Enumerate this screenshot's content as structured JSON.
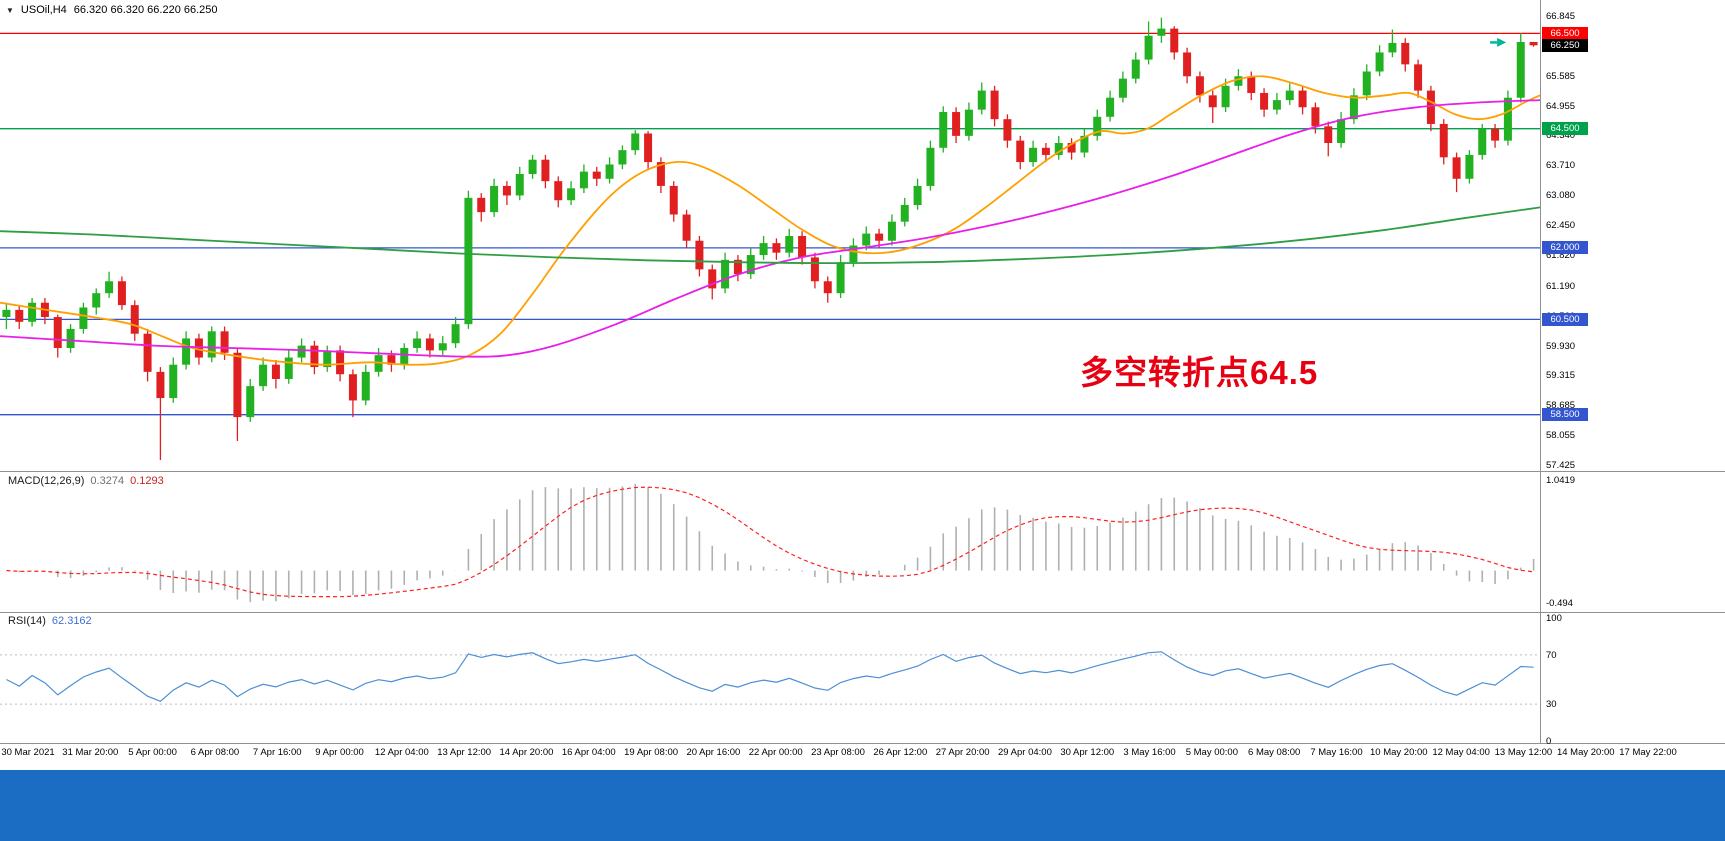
{
  "window": {
    "footer_color": "#1a6dc3"
  },
  "header": {
    "symbol_period": "USOil,H4",
    "ohlc": "66.320 66.320 66.220 66.250"
  },
  "icons": {
    "collapse": "▼"
  },
  "annotation": {
    "text": "多空转折点64.5",
    "color": "#e60012"
  },
  "indicators": {
    "macd": {
      "label": "MACD(12,26,9)",
      "value_main": "0.3274",
      "value_signal": "0.1293",
      "axis_top": "1.0419",
      "axis_bottom": "-0.494",
      "histogram_color": "#b0b0b0",
      "signal_color": "#ff2020"
    },
    "rsi": {
      "label": "RSI(14)",
      "value": "62.3162",
      "axis_labels": [
        "100",
        "70",
        "30",
        "0"
      ],
      "levels": [
        70,
        30
      ],
      "line_color": "#4b8fd5"
    }
  },
  "price_axis": {
    "plain": [
      {
        "text": "66.845",
        "price": 66.845
      },
      {
        "text": "65.585",
        "price": 65.585
      },
      {
        "text": "64.955",
        "price": 64.955
      },
      {
        "text": "64.340",
        "price": 64.34
      },
      {
        "text": "63.710",
        "price": 63.71
      },
      {
        "text": "63.080",
        "price": 63.08
      },
      {
        "text": "62.450",
        "price": 62.45
      },
      {
        "text": "61.820",
        "price": 61.82
      },
      {
        "text": "61.190",
        "price": 61.19
      },
      {
        "text": "60.560",
        "price": 60.56
      },
      {
        "text": "59.930",
        "price": 59.93
      },
      {
        "text": "59.315",
        "price": 59.315
      },
      {
        "text": "58.685",
        "price": 58.685
      },
      {
        "text": "58.055",
        "price": 58.055
      },
      {
        "text": "57.425",
        "price": 57.425
      }
    ],
    "badges": [
      {
        "text": "66.500",
        "price": 66.5,
        "bg": "#ff0000"
      },
      {
        "text": "66.250",
        "price": 66.25,
        "bg": "#000000"
      },
      {
        "text": "64.500",
        "price": 64.5,
        "bg": "#00a14b"
      },
      {
        "text": "62.000",
        "price": 62.0,
        "bg": "#3355d0"
      },
      {
        "text": "60.500",
        "price": 60.5,
        "bg": "#3355d0"
      },
      {
        "text": "58.500",
        "price": 58.5,
        "bg": "#3355d0"
      }
    ]
  },
  "time_axis": {
    "labels": [
      "30 Mar 2021",
      "31 Mar 20:00",
      "5 Apr 00:00",
      "6 Apr 08:00",
      "7 Apr 16:00",
      "9 Apr 00:00",
      "12 Apr 04:00",
      "13 Apr 12:00",
      "14 Apr 20:00",
      "16 Apr 04:00",
      "19 Apr 08:00",
      "20 Apr 16:00",
      "22 Apr 00:00",
      "23 Apr 08:00",
      "26 Apr 12:00",
      "27 Apr 20:00",
      "29 Apr 04:00",
      "30 Apr 12:00",
      "3 May 16:00",
      "5 May 00:00",
      "6 May 08:00",
      "7 May 16:00",
      "10 May 20:00",
      "12 May 04:00",
      "13 May 12:00",
      "14 May 20:00",
      "17 May 22:00"
    ]
  },
  "chart_data": {
    "type": "candlestick",
    "symbol": "USOil",
    "timeframe": "H4",
    "last_ohlc": {
      "open": 66.32,
      "high": 66.32,
      "low": 66.22,
      "close": 66.25
    },
    "price_range": [
      57.32,
      67.2
    ],
    "time_start": "30 Mar 2021",
    "time_end": "17 May 22:00",
    "bull_color": "#21b121",
    "bear_color": "#e02020",
    "candles": [
      [
        60.55,
        60.85,
        60.3,
        60.7
      ],
      [
        60.7,
        60.8,
        60.3,
        60.45
      ],
      [
        60.45,
        60.95,
        60.35,
        60.85
      ],
      [
        60.85,
        60.95,
        60.4,
        60.55
      ],
      [
        60.55,
        60.6,
        59.7,
        59.9
      ],
      [
        59.9,
        60.4,
        59.8,
        60.3
      ],
      [
        60.3,
        60.85,
        60.2,
        60.75
      ],
      [
        60.75,
        61.15,
        60.6,
        61.05
      ],
      [
        61.05,
        61.5,
        60.95,
        61.3
      ],
      [
        61.3,
        61.4,
        60.7,
        60.8
      ],
      [
        60.8,
        60.9,
        60.05,
        60.2
      ],
      [
        60.2,
        60.3,
        59.2,
        59.4
      ],
      [
        59.4,
        59.5,
        57.55,
        58.85
      ],
      [
        58.85,
        59.7,
        58.75,
        59.55
      ],
      [
        59.55,
        60.25,
        59.45,
        60.1
      ],
      [
        60.1,
        60.2,
        59.55,
        59.7
      ],
      [
        59.7,
        60.35,
        59.6,
        60.25
      ],
      [
        60.25,
        60.35,
        59.65,
        59.8
      ],
      [
        59.8,
        59.9,
        57.95,
        58.45
      ],
      [
        58.45,
        59.25,
        58.35,
        59.1
      ],
      [
        59.1,
        59.7,
        59.0,
        59.55
      ],
      [
        59.55,
        59.65,
        59.05,
        59.25
      ],
      [
        59.25,
        59.85,
        59.15,
        59.7
      ],
      [
        59.7,
        60.1,
        59.6,
        59.95
      ],
      [
        59.95,
        60.05,
        59.35,
        59.5
      ],
      [
        59.5,
        59.95,
        59.4,
        59.85
      ],
      [
        59.85,
        59.95,
        59.2,
        59.35
      ],
      [
        59.35,
        59.45,
        58.45,
        58.8
      ],
      [
        58.8,
        59.55,
        58.7,
        59.4
      ],
      [
        59.4,
        59.9,
        59.3,
        59.75
      ],
      [
        59.75,
        59.85,
        59.4,
        59.55
      ],
      [
        59.55,
        60.0,
        59.45,
        59.9
      ],
      [
        59.9,
        60.25,
        59.8,
        60.1
      ],
      [
        60.1,
        60.2,
        59.7,
        59.85
      ],
      [
        59.85,
        60.15,
        59.75,
        60.0
      ],
      [
        60.0,
        60.55,
        59.9,
        60.4
      ],
      [
        60.4,
        63.2,
        60.3,
        63.05
      ],
      [
        63.05,
        63.15,
        62.55,
        62.75
      ],
      [
        62.75,
        63.45,
        62.65,
        63.3
      ],
      [
        63.3,
        63.4,
        62.9,
        63.1
      ],
      [
        63.1,
        63.7,
        63.0,
        63.55
      ],
      [
        63.55,
        63.95,
        63.45,
        63.85
      ],
      [
        63.85,
        63.95,
        63.25,
        63.4
      ],
      [
        63.4,
        63.5,
        62.85,
        63.0
      ],
      [
        63.0,
        63.4,
        62.9,
        63.25
      ],
      [
        63.25,
        63.75,
        63.15,
        63.6
      ],
      [
        63.6,
        63.7,
        63.3,
        63.45
      ],
      [
        63.45,
        63.9,
        63.35,
        63.75
      ],
      [
        63.75,
        64.15,
        63.65,
        64.05
      ],
      [
        64.05,
        64.47,
        63.95,
        64.4
      ],
      [
        64.4,
        64.45,
        63.65,
        63.8
      ],
      [
        63.8,
        63.9,
        63.15,
        63.3
      ],
      [
        63.3,
        63.4,
        62.55,
        62.7
      ],
      [
        62.7,
        62.8,
        62.0,
        62.15
      ],
      [
        62.15,
        62.25,
        61.4,
        61.55
      ],
      [
        61.55,
        61.65,
        60.92,
        61.15
      ],
      [
        61.15,
        61.9,
        61.05,
        61.75
      ],
      [
        61.75,
        61.85,
        61.3,
        61.45
      ],
      [
        61.45,
        62.0,
        61.35,
        61.85
      ],
      [
        61.85,
        62.25,
        61.75,
        62.1
      ],
      [
        62.1,
        62.2,
        61.75,
        61.9
      ],
      [
        61.9,
        62.4,
        61.8,
        62.25
      ],
      [
        62.25,
        62.35,
        61.65,
        61.8
      ],
      [
        61.8,
        61.9,
        61.15,
        61.3
      ],
      [
        61.3,
        61.4,
        60.85,
        61.05
      ],
      [
        61.05,
        61.85,
        60.95,
        61.7
      ],
      [
        61.7,
        62.2,
        61.6,
        62.05
      ],
      [
        62.05,
        62.45,
        61.95,
        62.3
      ],
      [
        62.3,
        62.4,
        62.0,
        62.15
      ],
      [
        62.15,
        62.7,
        62.05,
        62.55
      ],
      [
        62.55,
        63.05,
        62.45,
        62.9
      ],
      [
        62.9,
        63.45,
        62.8,
        63.3
      ],
      [
        63.3,
        64.25,
        63.2,
        64.1
      ],
      [
        64.1,
        64.97,
        64.0,
        64.85
      ],
      [
        64.85,
        64.95,
        64.2,
        64.35
      ],
      [
        64.35,
        65.05,
        64.25,
        64.9
      ],
      [
        64.9,
        65.47,
        64.8,
        65.3
      ],
      [
        65.3,
        65.4,
        64.55,
        64.7
      ],
      [
        64.7,
        64.8,
        64.1,
        64.25
      ],
      [
        64.25,
        64.35,
        63.65,
        63.8
      ],
      [
        63.8,
        64.25,
        63.7,
        64.1
      ],
      [
        64.1,
        64.2,
        63.8,
        63.95
      ],
      [
        63.95,
        64.35,
        63.85,
        64.2
      ],
      [
        64.2,
        64.3,
        63.85,
        64.0
      ],
      [
        64.0,
        64.5,
        63.9,
        64.35
      ],
      [
        64.35,
        64.9,
        64.25,
        64.75
      ],
      [
        64.75,
        65.3,
        64.65,
        65.15
      ],
      [
        65.15,
        65.7,
        65.05,
        65.55
      ],
      [
        65.55,
        66.1,
        65.45,
        65.95
      ],
      [
        65.95,
        66.75,
        65.85,
        66.45
      ],
      [
        66.45,
        66.83,
        66.3,
        66.6
      ],
      [
        66.6,
        66.65,
        65.95,
        66.1
      ],
      [
        66.1,
        66.2,
        65.45,
        65.6
      ],
      [
        65.6,
        65.7,
        65.05,
        65.2
      ],
      [
        65.2,
        65.3,
        64.62,
        64.95
      ],
      [
        64.95,
        65.55,
        64.85,
        65.4
      ],
      [
        65.4,
        65.75,
        65.3,
        65.6
      ],
      [
        65.6,
        65.7,
        65.1,
        65.25
      ],
      [
        65.25,
        65.35,
        64.75,
        64.9
      ],
      [
        64.9,
        65.25,
        64.8,
        65.1
      ],
      [
        65.1,
        65.45,
        65.0,
        65.3
      ],
      [
        65.3,
        65.4,
        64.8,
        64.95
      ],
      [
        64.95,
        65.05,
        64.4,
        64.55
      ],
      [
        64.55,
        64.65,
        63.92,
        64.2
      ],
      [
        64.2,
        64.85,
        64.1,
        64.7
      ],
      [
        64.7,
        65.35,
        64.6,
        65.2
      ],
      [
        65.2,
        65.85,
        65.1,
        65.7
      ],
      [
        65.7,
        66.25,
        65.6,
        66.1
      ],
      [
        66.1,
        66.58,
        66.0,
        66.3
      ],
      [
        66.3,
        66.4,
        65.7,
        65.85
      ],
      [
        65.85,
        65.95,
        65.15,
        65.3
      ],
      [
        65.3,
        65.4,
        64.45,
        64.6
      ],
      [
        64.6,
        64.7,
        63.75,
        63.9
      ],
      [
        63.9,
        64.0,
        63.17,
        63.45
      ],
      [
        63.45,
        64.05,
        63.35,
        63.95
      ],
      [
        63.95,
        64.6,
        63.85,
        64.5
      ],
      [
        64.5,
        64.6,
        64.1,
        64.25
      ],
      [
        64.25,
        65.3,
        64.15,
        65.15
      ],
      [
        65.15,
        66.5,
        65.05,
        66.32
      ],
      [
        66.32,
        66.32,
        66.22,
        66.25
      ]
    ],
    "moving_averages": [
      {
        "name": "ma-fast-orange",
        "color": "#ffa000",
        "points": [
          [
            0,
            60.85
          ],
          [
            0.03,
            60.7
          ],
          [
            0.06,
            60.55
          ],
          [
            0.085,
            60.4
          ],
          [
            0.105,
            60.15
          ],
          [
            0.125,
            59.9
          ],
          [
            0.15,
            59.75
          ],
          [
            0.18,
            59.62
          ],
          [
            0.21,
            59.55
          ],
          [
            0.24,
            59.6
          ],
          [
            0.265,
            59.55
          ],
          [
            0.285,
            59.58
          ],
          [
            0.305,
            59.75
          ],
          [
            0.325,
            60.2
          ],
          [
            0.345,
            61.0
          ],
          [
            0.365,
            61.9
          ],
          [
            0.385,
            62.7
          ],
          [
            0.4,
            63.2
          ],
          [
            0.415,
            63.55
          ],
          [
            0.43,
            63.75
          ],
          [
            0.445,
            63.8
          ],
          [
            0.46,
            63.65
          ],
          [
            0.48,
            63.3
          ],
          [
            0.5,
            62.85
          ],
          [
            0.52,
            62.4
          ],
          [
            0.54,
            62.05
          ],
          [
            0.56,
            61.9
          ],
          [
            0.58,
            61.92
          ],
          [
            0.6,
            62.1
          ],
          [
            0.62,
            62.4
          ],
          [
            0.64,
            62.85
          ],
          [
            0.66,
            63.35
          ],
          [
            0.68,
            63.85
          ],
          [
            0.7,
            64.25
          ],
          [
            0.715,
            64.45
          ],
          [
            0.73,
            64.4
          ],
          [
            0.745,
            64.5
          ],
          [
            0.76,
            64.8
          ],
          [
            0.78,
            65.2
          ],
          [
            0.8,
            65.5
          ],
          [
            0.82,
            65.6
          ],
          [
            0.84,
            65.45
          ],
          [
            0.86,
            65.25
          ],
          [
            0.88,
            65.15
          ],
          [
            0.9,
            65.2
          ],
          [
            0.915,
            65.25
          ],
          [
            0.93,
            65.05
          ],
          [
            0.945,
            64.8
          ],
          [
            0.96,
            64.7
          ],
          [
            0.975,
            64.8
          ],
          [
            0.99,
            65.05
          ],
          [
            1,
            65.2
          ]
        ]
      },
      {
        "name": "ma-mid-magenta",
        "color": "#e91ee9",
        "points": [
          [
            0,
            60.15
          ],
          [
            0.05,
            60.05
          ],
          [
            0.1,
            59.95
          ],
          [
            0.15,
            59.9
          ],
          [
            0.2,
            59.85
          ],
          [
            0.25,
            59.78
          ],
          [
            0.3,
            59.72
          ],
          [
            0.33,
            59.75
          ],
          [
            0.36,
            59.95
          ],
          [
            0.4,
            60.4
          ],
          [
            0.44,
            60.95
          ],
          [
            0.48,
            61.45
          ],
          [
            0.52,
            61.8
          ],
          [
            0.56,
            62.0
          ],
          [
            0.6,
            62.2
          ],
          [
            0.64,
            62.45
          ],
          [
            0.68,
            62.75
          ],
          [
            0.72,
            63.1
          ],
          [
            0.76,
            63.5
          ],
          [
            0.8,
            63.95
          ],
          [
            0.84,
            64.4
          ],
          [
            0.88,
            64.75
          ],
          [
            0.92,
            64.95
          ],
          [
            0.96,
            65.05
          ],
          [
            1,
            65.1
          ]
        ]
      },
      {
        "name": "ma-slow-green",
        "color": "#2f9e44",
        "points": [
          [
            0,
            62.35
          ],
          [
            0.06,
            62.28
          ],
          [
            0.12,
            62.18
          ],
          [
            0.18,
            62.08
          ],
          [
            0.24,
            61.98
          ],
          [
            0.3,
            61.88
          ],
          [
            0.36,
            61.8
          ],
          [
            0.42,
            61.74
          ],
          [
            0.48,
            61.7
          ],
          [
            0.54,
            61.68
          ],
          [
            0.6,
            61.7
          ],
          [
            0.66,
            61.76
          ],
          [
            0.72,
            61.85
          ],
          [
            0.78,
            61.98
          ],
          [
            0.84,
            62.15
          ],
          [
            0.9,
            62.38
          ],
          [
            0.95,
            62.62
          ],
          [
            1,
            62.85
          ]
        ]
      }
    ],
    "horizontal_levels": [
      {
        "price": 66.5,
        "color": "#ff0000"
      },
      {
        "price": 64.5,
        "color": "#00a14b"
      },
      {
        "price": 62.0,
        "color": "#3355d0"
      },
      {
        "price": 60.5,
        "color": "#3355d0"
      },
      {
        "price": 58.5,
        "color": "#3355d0"
      }
    ],
    "marker": {
      "price": 66.31,
      "x_fraction": 0.978,
      "color": "#00b896",
      "shape": "arrow-right"
    },
    "sub_charts": [
      {
        "type": "macd-histogram",
        "params": "(12,26,9)",
        "current_main": 0.3274,
        "current_signal": 0.1293,
        "range": [
          -0.494,
          1.0419
        ]
      },
      {
        "type": "rsi-line",
        "params": "(14)",
        "current": 62.3162,
        "range": [
          0,
          100
        ],
        "levels": [
          70,
          30
        ]
      }
    ]
  }
}
